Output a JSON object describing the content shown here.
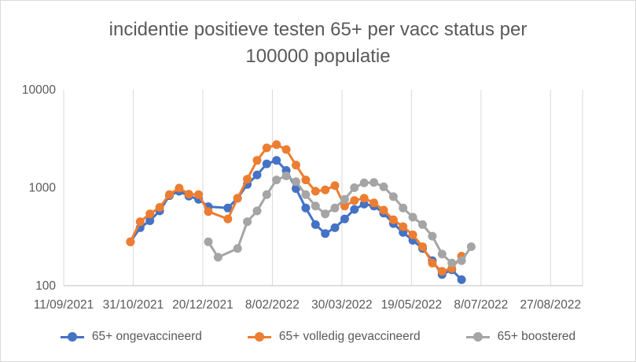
{
  "chart_data": {
    "type": "line",
    "title": "incidentie positieve testen 65+ per vacc status per 100000 populatie",
    "title_lines": [
      "incidentie positieve testen 65+ per vacc status per",
      "100000 populatie"
    ],
    "xlabel": "",
    "ylabel": "",
    "x_scale": "date",
    "x_ticks": [
      "11/09/2021",
      "31/10/2021",
      "20/12/2021",
      "8/02/2022",
      "30/03/2022",
      "19/05/2022",
      "8/07/2022",
      "27/08/2022"
    ],
    "xlim": [
      "11/09/2021",
      "19/09/2022"
    ],
    "y_scale": "log",
    "ylim": [
      100,
      10000
    ],
    "y_ticks": [
      100,
      1000,
      10000
    ],
    "y_tick_labels": [
      "100",
      "1000",
      "10000"
    ],
    "grid": {
      "vertical": true,
      "horizontal": false
    },
    "legend_position": "bottom",
    "series": [
      {
        "name": "65+ ongevaccineerd",
        "color": "#4472C4",
        "x": [
          "29/10/2021",
          "5/11/2021",
          "12/11/2021",
          "19/11/2021",
          "26/11/2021",
          "3/12/2021",
          "10/12/2021",
          "17/12/2021",
          "24/12/2021",
          "7/01/2022",
          "14/01/2022",
          "21/01/2022",
          "28/01/2022",
          "4/02/2022",
          "11/02/2022",
          "18/02/2022",
          "25/02/2022",
          "4/03/2022",
          "11/03/2022",
          "18/03/2022",
          "25/03/2022",
          "1/04/2022",
          "8/04/2022",
          "15/04/2022",
          "22/04/2022",
          "29/04/2022",
          "6/05/2022",
          "13/05/2022",
          "20/05/2022",
          "27/05/2022",
          "3/06/2022",
          "10/06/2022",
          "17/06/2022",
          "24/06/2022",
          "1/07/2022"
        ],
        "y": [
          280,
          390,
          460,
          580,
          830,
          920,
          820,
          760,
          640,
          620,
          780,
          1080,
          1350,
          1750,
          1900,
          1500,
          980,
          620,
          420,
          340,
          390,
          480,
          600,
          680,
          650,
          550,
          430,
          350,
          290,
          240,
          180,
          130,
          145,
          115,
          null
        ]
      },
      {
        "name": "65+ volledig gevaccineerd",
        "color": "#ED7D31",
        "x": [
          "29/10/2021",
          "5/11/2021",
          "12/11/2021",
          "19/11/2021",
          "26/11/2021",
          "3/12/2021",
          "10/12/2021",
          "17/12/2021",
          "24/12/2021",
          "7/01/2022",
          "14/01/2022",
          "21/01/2022",
          "28/01/2022",
          "4/02/2022",
          "11/02/2022",
          "18/02/2022",
          "25/02/2022",
          "4/03/2022",
          "11/03/2022",
          "18/03/2022",
          "25/03/2022",
          "1/04/2022",
          "8/04/2022",
          "15/04/2022",
          "22/04/2022",
          "29/04/2022",
          "6/05/2022",
          "13/05/2022",
          "20/05/2022",
          "27/05/2022",
          "3/06/2022",
          "10/06/2022",
          "17/06/2022",
          "24/06/2022",
          "1/07/2022"
        ],
        "y": [
          280,
          450,
          540,
          630,
          850,
          990,
          860,
          850,
          570,
          480,
          780,
          1220,
          1900,
          2550,
          2750,
          2450,
          1700,
          1200,
          920,
          950,
          1050,
          650,
          740,
          780,
          700,
          590,
          470,
          400,
          330,
          250,
          170,
          140,
          150,
          200,
          null
        ]
      },
      {
        "name": "65+ boostered",
        "color": "#A5A5A5",
        "x": [
          "24/12/2021",
          "31/12/2021",
          "14/01/2022",
          "21/01/2022",
          "28/01/2022",
          "4/02/2022",
          "11/02/2022",
          "18/02/2022",
          "25/02/2022",
          "4/03/2022",
          "11/03/2022",
          "18/03/2022",
          "25/03/2022",
          "1/04/2022",
          "8/04/2022",
          "15/04/2022",
          "22/04/2022",
          "29/04/2022",
          "6/05/2022",
          "13/05/2022",
          "20/05/2022",
          "27/05/2022",
          "3/06/2022",
          "10/06/2022",
          "17/06/2022",
          "24/06/2022",
          "1/07/2022"
        ],
        "y": [
          280,
          195,
          240,
          450,
          580,
          850,
          1200,
          1320,
          1150,
          850,
          650,
          540,
          620,
          760,
          1000,
          1120,
          1130,
          1020,
          810,
          620,
          500,
          420,
          320,
          210,
          170,
          180,
          250
        ]
      }
    ]
  }
}
